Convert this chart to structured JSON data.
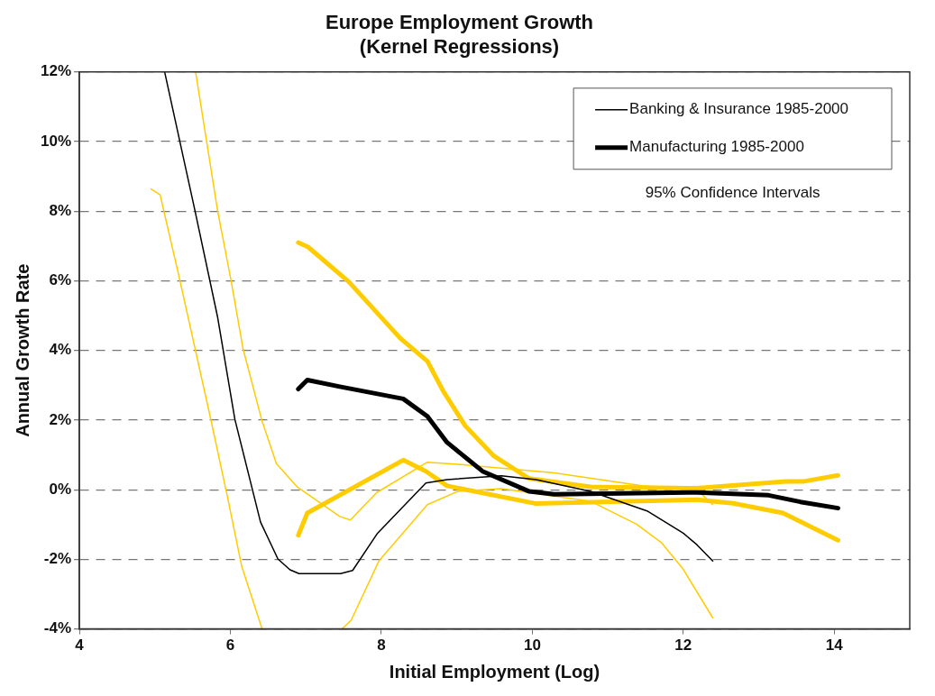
{
  "chart_data": {
    "type": "line",
    "title": "Europe Employment Growth\n(Kernel Regressions)",
    "xlabel": "Initial Employment (Log)",
    "ylabel": "Annual Growth Rate",
    "xlim": [
      4,
      15
    ],
    "xticks": [
      4,
      6,
      8,
      10,
      12,
      14
    ],
    "ylim": [
      -4,
      12
    ],
    "yticks": [
      {
        "value": -4,
        "label": "-4%"
      },
      {
        "value": -2,
        "label": "-2%"
      },
      {
        "value": 0,
        "label": "0%"
      },
      {
        "value": 2,
        "label": "2%"
      },
      {
        "value": 4,
        "label": "4%"
      },
      {
        "value": 6,
        "label": "6%"
      },
      {
        "value": 8,
        "label": "8%"
      },
      {
        "value": 10,
        "label": "10%"
      },
      {
        "value": 12,
        "label": "12%"
      }
    ],
    "grid": "y",
    "legend": "top right",
    "marker": "none",
    "line_style": "solid",
    "annotations": [
      "95% Confidence Intervals"
    ],
    "series": [
      {
        "name": "Banking & Insurance 1985-2000",
        "color": "#000000",
        "x": [
          5.13,
          5.53,
          5.83,
          6.06,
          6.4,
          6.63,
          6.79,
          6.91,
          7.46,
          7.62,
          7.95,
          8.59,
          8.87,
          9.59,
          10.05,
          10.77,
          11.52,
          12.0,
          12.18,
          12.39
        ],
        "values": [
          12,
          8.03,
          4.97,
          2.02,
          -0.93,
          -1.99,
          -2.3,
          -2.41,
          -2.41,
          -2.32,
          -1.25,
          0.19,
          0.29,
          0.4,
          0.29,
          -0.05,
          -0.61,
          -1.25,
          -1.58,
          -2.05
        ]
      },
      {
        "name": "Manufacturing 1985-2000",
        "color": "#000000",
        "x": [
          6.9,
          7.02,
          7.45,
          8.29,
          8.61,
          8.87,
          9.34,
          9.96,
          10.29,
          12.18,
          13.13,
          13.55,
          14.05
        ],
        "values": [
          2.89,
          3.15,
          2.96,
          2.61,
          2.11,
          1.36,
          0.53,
          -0.05,
          -0.13,
          -0.08,
          -0.16,
          -0.35,
          -0.53
        ]
      },
      {
        "color": "#ffcc00",
        "x": [
          5.54,
          5.83,
          6.01,
          6.17,
          6.42,
          6.61,
          6.89,
          7.45,
          7.59,
          7.94,
          8.61,
          9.01,
          10.29,
          11.47,
          12.18,
          12.39
        ],
        "values": [
          12,
          8.03,
          6.0,
          4.03,
          1.97,
          0.75,
          0.07,
          -0.77,
          -0.87,
          -0.08,
          0.79,
          0.73,
          0.48,
          0.11,
          0.0,
          -0.43
        ]
      },
      {
        "color": "#ffcc00",
        "x": [
          4.95,
          5.07,
          5.33,
          5.74,
          5.97,
          6.15,
          6.42,
          7.0,
          7.48,
          7.6,
          7.97,
          8.61,
          9.01,
          9.59,
          10.77,
          11.38,
          11.71,
          12.0,
          12.39
        ],
        "values": [
          8.64,
          8.47,
          6.03,
          2.03,
          -0.29,
          -2.2,
          -4,
          null,
          -4,
          -3.75,
          -2.04,
          -0.43,
          -0.05,
          0.03,
          -0.33,
          -0.99,
          -1.52,
          -2.29,
          -3.68
        ]
      },
      {
        "color": "#ffcc00",
        "x": [
          6.9,
          7.03,
          7.57,
          8.25,
          8.61,
          8.82,
          9.11,
          9.49,
          9.96,
          10.77,
          12.18,
          13.36,
          13.6,
          14.05
        ],
        "values": [
          7.1,
          6.97,
          5.97,
          4.35,
          3.69,
          2.83,
          1.84,
          0.97,
          0.32,
          0.08,
          0.04,
          0.24,
          0.24,
          0.41
        ]
      },
      {
        "color": "#ffcc00",
        "x": [
          6.9,
          7.02,
          8.29,
          8.59,
          8.87,
          10.05,
          12.18,
          12.66,
          13.32,
          14.05
        ],
        "values": [
          -1.31,
          -0.67,
          0.85,
          0.53,
          0.11,
          -0.4,
          -0.29,
          -0.39,
          -0.67,
          -1.45
        ]
      }
    ]
  }
}
